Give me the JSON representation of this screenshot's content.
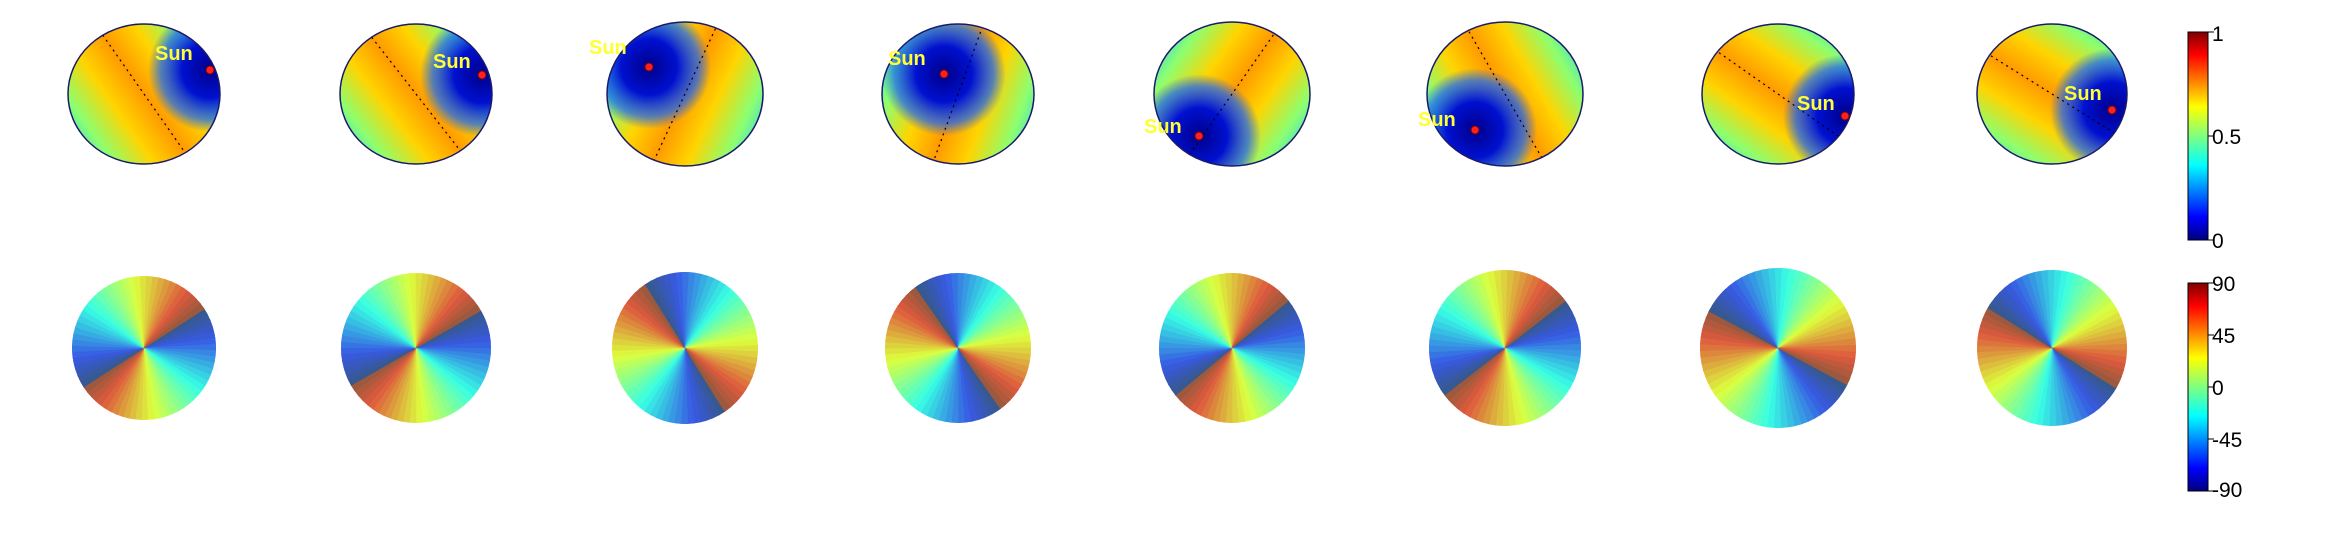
{
  "colorbars": {
    "degree_of_polarization": {
      "ticks": [
        "1",
        "0.5",
        "0"
      ]
    },
    "angle_of_polarization": {
      "ticks": [
        "90",
        "45",
        "0",
        "-45",
        "-90"
      ]
    }
  },
  "sun_label": "Sun",
  "panel_count": 8,
  "colormap": "jet",
  "panels": [
    {
      "sun_visible": true,
      "dop_band_angle": -35,
      "aop_line_angle": -33
    },
    {
      "sun_visible": true,
      "dop_band_angle": -38,
      "aop_line_angle": -30
    },
    {
      "sun_visible": true,
      "dop_band_angle": 25,
      "aop_line_angle": 58
    },
    {
      "sun_visible": true,
      "dop_band_angle": 20,
      "aop_line_angle": 55
    },
    {
      "sun_visible": true,
      "dop_band_angle": 35,
      "aop_line_angle": -40
    },
    {
      "sun_visible": true,
      "dop_band_angle": -30,
      "aop_line_angle": -38
    },
    {
      "sun_visible": true,
      "dop_band_angle": -55,
      "aop_line_angle": 28
    },
    {
      "sun_visible": true,
      "dop_band_angle": -58,
      "aop_line_angle": 32
    }
  ]
}
